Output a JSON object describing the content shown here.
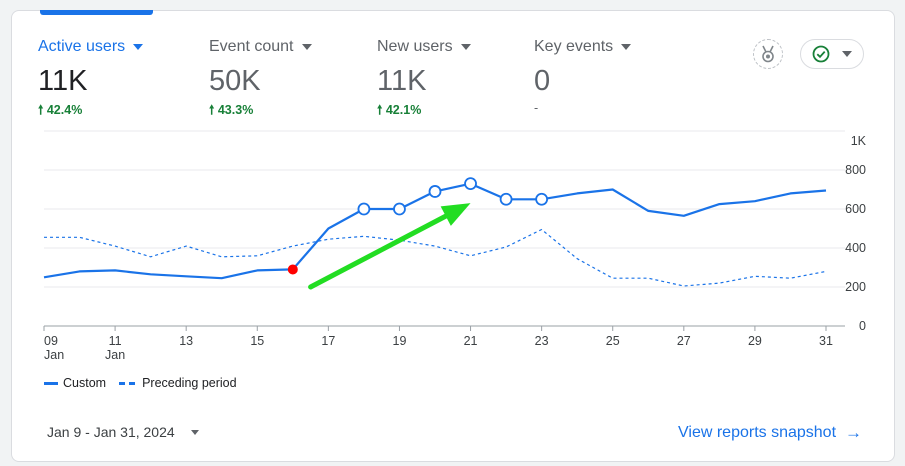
{
  "metrics": [
    {
      "label": "Active users",
      "value": "11K",
      "delta": "42.4%",
      "active": true
    },
    {
      "label": "Event count",
      "value": "50K",
      "delta": "43.3%",
      "active": false
    },
    {
      "label": "New users",
      "value": "11K",
      "delta": "42.1%",
      "active": false
    },
    {
      "label": "Key events",
      "value": "0",
      "delta": "-",
      "active": false
    }
  ],
  "icons": {
    "insight": "insights-badge-icon",
    "status": "check-circle-icon",
    "arrow_up": "arrow-up-icon",
    "arrow_right": "arrow-right-icon"
  },
  "chart_data": {
    "type": "line",
    "x": [
      "09",
      "10",
      "11",
      "12",
      "13",
      "14",
      "15",
      "16",
      "17",
      "18",
      "19",
      "20",
      "21",
      "22",
      "23",
      "24",
      "25",
      "26",
      "27",
      "28",
      "29",
      "30",
      "31"
    ],
    "x_tick_labels": [
      "09",
      "11",
      "13",
      "15",
      "17",
      "19",
      "21",
      "23",
      "25",
      "27",
      "29",
      "31"
    ],
    "x_sublabels": {
      "09": "Jan",
      "11": "Jan"
    },
    "y_ticks": [
      "0",
      "200",
      "400",
      "600",
      "800",
      "1K"
    ],
    "ylim": [
      0,
      1000
    ],
    "grid": true,
    "series": [
      {
        "name": "Custom",
        "style": "solid",
        "color": "#1a73e8",
        "values": [
          250,
          280,
          285,
          265,
          255,
          245,
          285,
          290,
          500,
          600,
          600,
          690,
          730,
          650,
          650,
          680,
          700,
          590,
          565,
          625,
          640,
          680,
          695
        ]
      },
      {
        "name": "Preceding period",
        "style": "dashed",
        "color": "#1a73e8",
        "values": [
          455,
          455,
          410,
          355,
          410,
          355,
          360,
          410,
          445,
          460,
          440,
          410,
          360,
          405,
          495,
          345,
          245,
          245,
          205,
          220,
          255,
          245,
          280
        ]
      }
    ],
    "highlighted_points": [
      "18",
      "19",
      "20",
      "21",
      "22",
      "23"
    ],
    "annotation_marker": {
      "x": "16",
      "color": "#ff0000"
    },
    "annotation_arrow": {
      "color": "#22dd22",
      "from": {
        "x": "16.5",
        "y": 200
      },
      "to": {
        "x": "21",
        "y": 630
      }
    }
  },
  "legend": {
    "custom": "Custom",
    "preceding": "Preceding period"
  },
  "footer": {
    "date_range": "Jan 9 - Jan 31, 2024",
    "view_link": "View reports snapshot"
  }
}
